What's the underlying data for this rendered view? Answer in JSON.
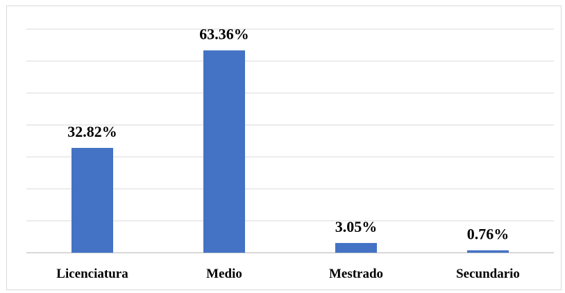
{
  "chart_data": {
    "type": "bar",
    "categories": [
      "Licenciatura",
      "Medio",
      "Mestrado",
      "Secundario"
    ],
    "values": [
      32.82,
      63.36,
      3.05,
      0.76
    ],
    "data_labels": [
      "32.82%",
      "63.36%",
      "3.05%",
      "0.76%"
    ],
    "ylim": [
      0,
      70
    ],
    "grid": true,
    "legend": "none",
    "bar_color": "#4472C4",
    "grid_color": "#d9d9d9",
    "axis_color": "#bfbfbf"
  }
}
